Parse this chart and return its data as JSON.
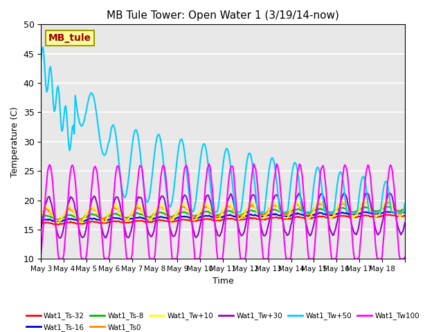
{
  "title": "MB Tule Tower: Open Water 1 (3/19/14-now)",
  "xlabel": "Time",
  "ylabel": "Temperature (C)",
  "n_days": 16,
  "ylim": [
    10,
    50
  ],
  "yticks": [
    10,
    15,
    20,
    25,
    30,
    35,
    40,
    45,
    50
  ],
  "x_tick_labels": [
    "May 3",
    "May 4",
    "May 5",
    "May 6",
    "May 7",
    "May 8",
    "May 9",
    "May 10",
    "May 11",
    "May 12",
    "May 13",
    "May 14",
    "May 15",
    "May 16",
    "May 17",
    "May 18"
  ],
  "bg_color": "#e8e8e8",
  "series": [
    {
      "label": "Wat1_Ts-32",
      "color": "#ff0000",
      "lw": 1.5
    },
    {
      "label": "Wat1_Ts-16",
      "color": "#0000cc",
      "lw": 1.5
    },
    {
      "label": "Wat1_Ts-8",
      "color": "#00bb00",
      "lw": 1.5
    },
    {
      "label": "Wat1_Ts0",
      "color": "#ff8800",
      "lw": 1.5
    },
    {
      "label": "Wat1_Tw+10",
      "color": "#ffff00",
      "lw": 1.5
    },
    {
      "label": "Wat1_Tw+30",
      "color": "#9900cc",
      "lw": 1.5
    },
    {
      "label": "Wat1_Tw+50",
      "color": "#00ccff",
      "lw": 1.5
    },
    {
      "label": "Wat1_Tw100",
      "color": "#ff00ff",
      "lw": 1.5
    }
  ],
  "annotation_text": "MB_tule",
  "annotation_color": "#990000",
  "annotation_bg": "#ffff99",
  "annotation_border": "#999900"
}
